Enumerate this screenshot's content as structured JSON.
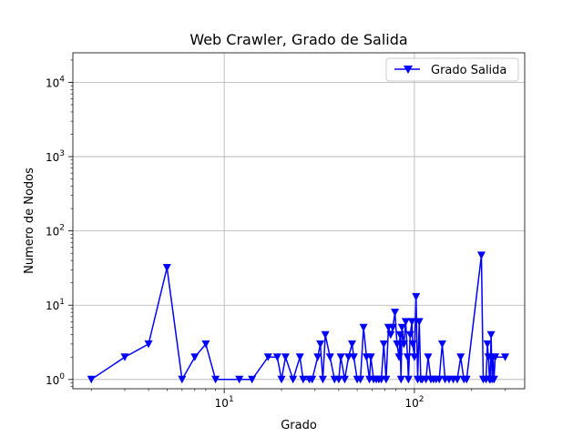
{
  "chart_data": {
    "type": "line",
    "title": "Web Crawler, Grado de Salida",
    "xlabel": "Grado",
    "ylabel": "Numero de Nodos",
    "xscale": "log",
    "yscale": "log",
    "xlim": [
      1.6,
      380
    ],
    "ylim": [
      0.75,
      25000
    ],
    "grid": true,
    "legend": {
      "placement": "top-right"
    },
    "x_ticks": [
      {
        "value": 10,
        "base": "10",
        "exp": "1"
      },
      {
        "value": 100,
        "base": "10",
        "exp": "2"
      }
    ],
    "y_ticks": [
      {
        "value": 1,
        "base": "10",
        "exp": "0"
      },
      {
        "value": 10,
        "base": "10",
        "exp": "1"
      },
      {
        "value": 100,
        "base": "10",
        "exp": "2"
      },
      {
        "value": 1000,
        "base": "10",
        "exp": "3"
      },
      {
        "value": 10000,
        "base": "10",
        "exp": "4"
      }
    ],
    "series": [
      {
        "name": "Grado Salida",
        "color": "#0000ff",
        "marker": "triangle-down",
        "points": [
          [
            2,
            1
          ],
          [
            3,
            2
          ],
          [
            4,
            3
          ],
          [
            5,
            32
          ],
          [
            6,
            1
          ],
          [
            7,
            2
          ],
          [
            8,
            3
          ],
          [
            9,
            1
          ],
          [
            12,
            1
          ],
          [
            14,
            1
          ],
          [
            17,
            2
          ],
          [
            19,
            2
          ],
          [
            20,
            1
          ],
          [
            21,
            2
          ],
          [
            23,
            1
          ],
          [
            25,
            2
          ],
          [
            26,
            1
          ],
          [
            28,
            1
          ],
          [
            29,
            1
          ],
          [
            31,
            2
          ],
          [
            32,
            3
          ],
          [
            33,
            1
          ],
          [
            34,
            4
          ],
          [
            36,
            2
          ],
          [
            38,
            1
          ],
          [
            40,
            1
          ],
          [
            41,
            2
          ],
          [
            43,
            1
          ],
          [
            45,
            2
          ],
          [
            47,
            3
          ],
          [
            48,
            2
          ],
          [
            50,
            1
          ],
          [
            52,
            1
          ],
          [
            54,
            5
          ],
          [
            56,
            2
          ],
          [
            58,
            1
          ],
          [
            59,
            2
          ],
          [
            61,
            1
          ],
          [
            63,
            1
          ],
          [
            65,
            1
          ],
          [
            67,
            1
          ],
          [
            69,
            3
          ],
          [
            71,
            1
          ],
          [
            73,
            5
          ],
          [
            75,
            4
          ],
          [
            77,
            5
          ],
          [
            79,
            8
          ],
          [
            81,
            3
          ],
          [
            83,
            2
          ],
          [
            84,
            4
          ],
          [
            85,
            1
          ],
          [
            86,
            5
          ],
          [
            88,
            3
          ],
          [
            90,
            6
          ],
          [
            92,
            2
          ],
          [
            93,
            1
          ],
          [
            95,
            4
          ],
          [
            97,
            6
          ],
          [
            98,
            3
          ],
          [
            100,
            2
          ],
          [
            102,
            13
          ],
          [
            104,
            1
          ],
          [
            106,
            6
          ],
          [
            108,
            1
          ],
          [
            110,
            1
          ],
          [
            115,
            1
          ],
          [
            118,
            2
          ],
          [
            122,
            1
          ],
          [
            126,
            1
          ],
          [
            130,
            1
          ],
          [
            135,
            1
          ],
          [
            140,
            3
          ],
          [
            145,
            1
          ],
          [
            152,
            1
          ],
          [
            160,
            1
          ],
          [
            168,
            1
          ],
          [
            175,
            2
          ],
          [
            182,
            1
          ],
          [
            188,
            1
          ],
          [
            225,
            47
          ],
          [
            230,
            1
          ],
          [
            238,
            1
          ],
          [
            242,
            3
          ],
          [
            245,
            2
          ],
          [
            248,
            1
          ],
          [
            250,
            1
          ],
          [
            253,
            4
          ],
          [
            256,
            1
          ],
          [
            259,
            2
          ],
          [
            262,
            1
          ],
          [
            266,
            2
          ],
          [
            300,
            2
          ]
        ]
      }
    ]
  }
}
